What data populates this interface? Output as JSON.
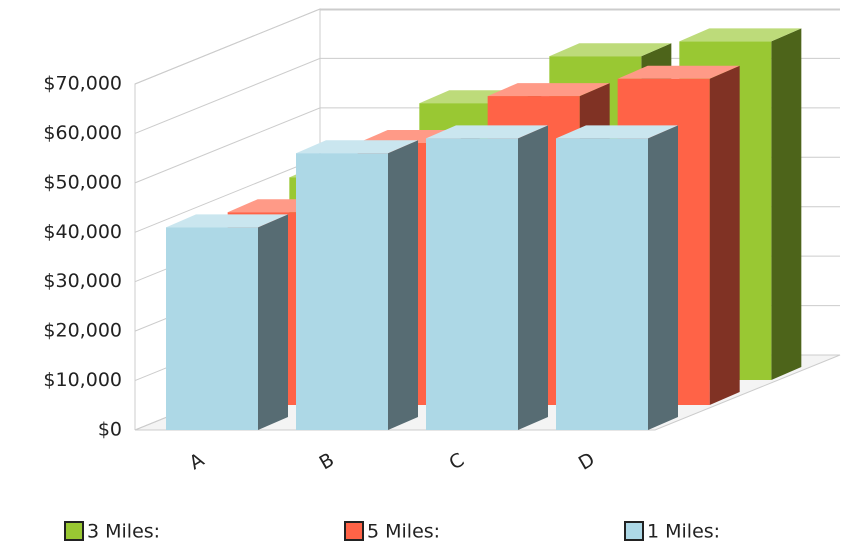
{
  "chart_data": {
    "type": "bar3d",
    "categories": [
      "A",
      "B",
      "C",
      "D"
    ],
    "series": [
      {
        "name": "3 Miles:",
        "color": "#99c833",
        "values": [
          41000,
          56000,
          65500,
          68500
        ]
      },
      {
        "name": "5 Miles:",
        "color": "#ff6347",
        "values": [
          39000,
          53000,
          62500,
          66000
        ]
      },
      {
        "name": "1 Miles:",
        "color": "#add8e6",
        "values": [
          41000,
          56000,
          59000,
          59000
        ]
      }
    ],
    "ylim": [
      0,
      70000
    ],
    "yticks": [
      {
        "value": 0,
        "label": "$0"
      },
      {
        "value": 10000,
        "label": "$10,000"
      },
      {
        "value": 20000,
        "label": "$20,000"
      },
      {
        "value": 30000,
        "label": "$30,000"
      },
      {
        "value": 40000,
        "label": "$40,000"
      },
      {
        "value": 50000,
        "label": "$50,000"
      },
      {
        "value": 60000,
        "label": "$60,000"
      },
      {
        "value": 70000,
        "label": "$70,000"
      }
    ],
    "grid": true,
    "legend": "bottom"
  }
}
